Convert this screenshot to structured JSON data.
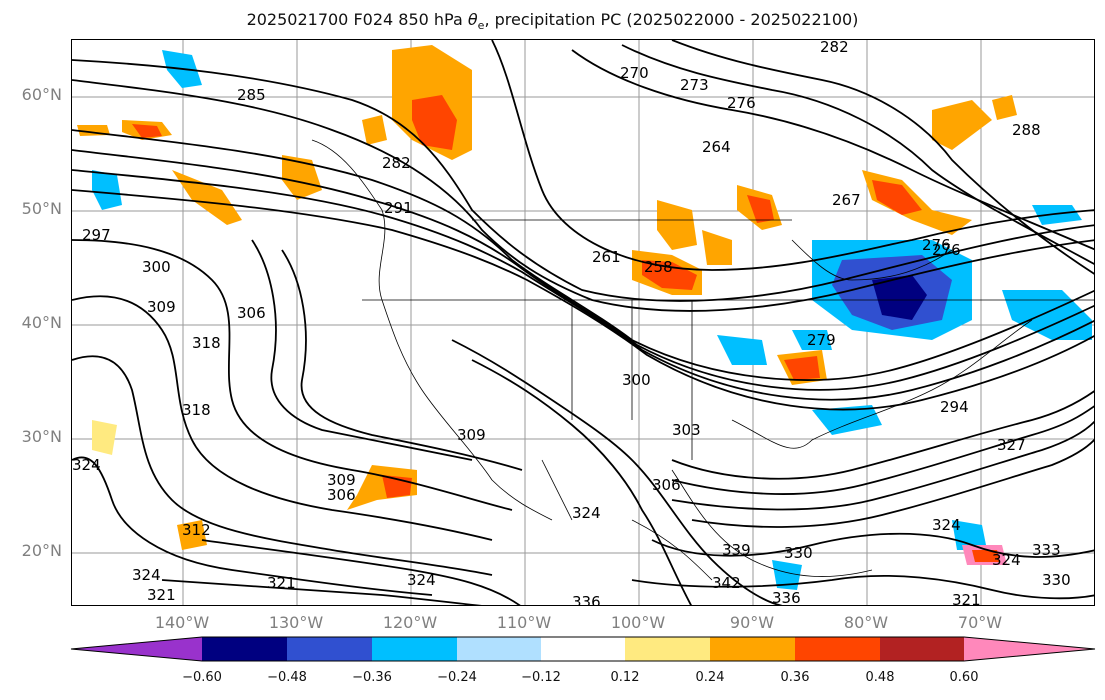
{
  "title_prefix": "2025021700 F024 850 hPa ",
  "title_symbol": "θ",
  "title_sub": "e",
  "title_suffix": ", precipitation PC (2025022000 - 2025022100)",
  "lat_labels": [
    "60°N",
    "50°N",
    "40°N",
    "30°N",
    "20°N"
  ],
  "lon_labels": [
    "140°W",
    "130°W",
    "120°W",
    "110°W",
    "100°W",
    "90°W",
    "80°W",
    "70°W"
  ],
  "colorbar": {
    "ticks": [
      "−0.60",
      "−0.48",
      "−0.36",
      "−0.24",
      "−0.12",
      "0.12",
      "0.24",
      "0.36",
      "0.48",
      "0.60"
    ],
    "colors": {
      "under": "#9932cc",
      "b1": "#000080",
      "b2": "#3050d0",
      "b3": "#00bfff",
      "b4": "#b0e0ff",
      "b5": "#ffffff",
      "b6": "#ffea80",
      "b7": "#ffa500",
      "b8": "#ff4500",
      "b9": "#b22222",
      "over": "#ff88bb"
    }
  },
  "contour_labels": [
    "270",
    "273",
    "276",
    "282",
    "282",
    "285",
    "288",
    "291",
    "297",
    "300",
    "309",
    "318",
    "306",
    "318",
    "324",
    "309",
    "306",
    "312",
    "324",
    "321",
    "321",
    "324",
    "303",
    "300",
    "264",
    "267",
    "261",
    "258",
    "276",
    "279",
    "294",
    "327",
    "324",
    "330",
    "333",
    "339",
    "342",
    "336",
    "336",
    "324",
    "330",
    "309",
    "306",
    "324",
    "321",
    "276"
  ]
}
